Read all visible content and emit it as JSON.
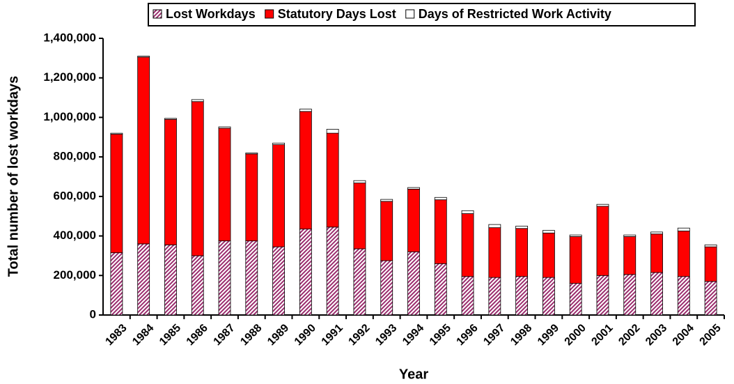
{
  "chart_data": {
    "type": "stacked-bar",
    "x_label": "Year",
    "y_label": "Total number of lost workdays",
    "categories": [
      "1983",
      "1984",
      "1985",
      "1986",
      "1987",
      "1988",
      "1989",
      "1990",
      "1991",
      "1992",
      "1993",
      "1994",
      "1995",
      "1996",
      "1997",
      "1998",
      "1999",
      "2000",
      "2001",
      "2002",
      "2003",
      "2004",
      "2005"
    ],
    "series": [
      {
        "name": "Lost Workdays",
        "color": "#9b2d6e",
        "hatch": true,
        "values": [
          315000,
          360000,
          355000,
          300000,
          375000,
          375000,
          345000,
          435000,
          445000,
          335000,
          275000,
          320000,
          260000,
          195000,
          190000,
          195000,
          190000,
          160000,
          200000,
          205000,
          215000,
          195000,
          170000
        ]
      },
      {
        "name": "Statutory Days Lost",
        "color": "#ff0000",
        "values": [
          600000,
          945000,
          635000,
          780000,
          570000,
          440000,
          517000,
          595000,
          475000,
          333000,
          300000,
          317000,
          323000,
          318000,
          252000,
          243000,
          225000,
          237000,
          350000,
          192000,
          195000,
          230000,
          175000
        ]
      },
      {
        "name": "Days of Restricted Work Activity",
        "color": "#ffffff",
        "values": [
          5000,
          5000,
          5000,
          10000,
          7000,
          5000,
          8000,
          12000,
          20000,
          12000,
          10000,
          8000,
          12000,
          15000,
          16000,
          12000,
          13000,
          8000,
          10000,
          8000,
          10000,
          15000,
          10000
        ]
      }
    ],
    "ylim": [
      0,
      1400000
    ],
    "yticks": [
      0,
      {
        "value": 200000,
        "label": "200,000"
      },
      {
        "value": 400000,
        "label": "400,000"
      },
      {
        "value": 600000,
        "label": "600,000"
      },
      {
        "value": 800000,
        "label": "800,000"
      },
      {
        "value": 1000000,
        "label": "1,000,000"
      },
      {
        "value": 1200000,
        "label": "1,200,000"
      },
      {
        "value": 1400000,
        "label": "1,400,000"
      }
    ],
    "legend": "top"
  }
}
